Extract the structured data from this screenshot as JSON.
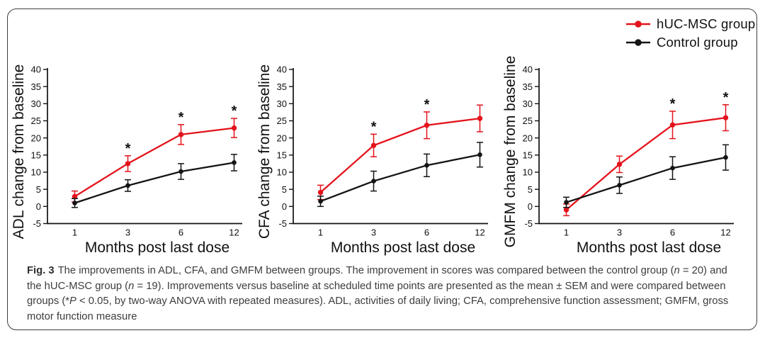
{
  "figure": {
    "caption": {
      "label": "Fig. 3",
      "segments": [
        {
          "text": "The improvements in ADL, CFA, and GMFM between groups. The improvement in scores was compared between the control group ("
        },
        {
          "text": "n",
          "italic": true
        },
        {
          "text": " = 20) and the hUC-MSC group ("
        },
        {
          "text": "n",
          "italic": true
        },
        {
          "text": " = 19). Improvements versus baseline at scheduled time points are presented as the mean ± SEM and were compared between groups (*"
        },
        {
          "text": "P",
          "italic": true
        },
        {
          "text": " < 0.05, by two-way ANOVA with repeated measures). ADL, activities of daily living; CFA, comprehensive function assessment; GMFM, gross motor function measure"
        }
      ]
    }
  },
  "legend": {
    "items": [
      {
        "label": "hUC-MSC group",
        "color": "#e4131c"
      },
      {
        "label": "Control group",
        "color": "#141414"
      }
    ]
  },
  "chart_data": [
    {
      "id": "adl",
      "type": "line",
      "ylabel": "ADL change from baseline",
      "xlabel": "Months post last dose",
      "categories": [
        "1",
        "3",
        "6",
        "12"
      ],
      "ylim": [
        -5,
        40
      ],
      "ytick_step": 5,
      "sig_symbol": "*",
      "series": [
        {
          "name": "hUC-MSC group",
          "color": "#e4131c",
          "values": [
            2.9,
            12.5,
            21.0,
            22.9
          ],
          "sem": [
            1.6,
            2.3,
            2.9,
            2.8
          ],
          "significant": [
            false,
            true,
            true,
            true
          ]
        },
        {
          "name": "Control group",
          "color": "#141414",
          "values": [
            1.0,
            6.1,
            10.2,
            12.8
          ],
          "sem": [
            1.3,
            1.7,
            2.3,
            2.4
          ],
          "significant": [
            false,
            false,
            false,
            false
          ]
        }
      ]
    },
    {
      "id": "cfa",
      "type": "line",
      "ylabel": "CFA change from baseline",
      "xlabel": "Months post last dose",
      "categories": [
        "1",
        "3",
        "6",
        "12"
      ],
      "ylim": [
        -5,
        40
      ],
      "ytick_step": 5,
      "sig_symbol": "*",
      "series": [
        {
          "name": "hUC-MSC group",
          "color": "#e4131c",
          "values": [
            4.1,
            17.8,
            23.7,
            25.7
          ],
          "sem": [
            2.1,
            3.3,
            3.9,
            3.9
          ],
          "significant": [
            false,
            true,
            true,
            false
          ]
        },
        {
          "name": "Control group",
          "color": "#141414",
          "values": [
            1.5,
            7.4,
            12.0,
            15.1
          ],
          "sem": [
            1.5,
            2.9,
            3.3,
            3.6
          ],
          "significant": [
            false,
            false,
            false,
            false
          ]
        }
      ]
    },
    {
      "id": "gmfm",
      "type": "line",
      "ylabel": "GMFM change from baseline",
      "xlabel": "Months post last dose",
      "categories": [
        "1",
        "3",
        "6",
        "12"
      ],
      "ylim": [
        -5,
        40
      ],
      "ytick_step": 5,
      "sig_symbol": "*",
      "series": [
        {
          "name": "hUC-MSC group",
          "color": "#e4131c",
          "values": [
            -1.0,
            12.3,
            23.8,
            25.9
          ],
          "sem": [
            1.7,
            2.4,
            4.0,
            3.8
          ],
          "significant": [
            false,
            false,
            true,
            true
          ]
        },
        {
          "name": "Control group",
          "color": "#141414",
          "values": [
            1.2,
            6.2,
            11.2,
            14.3
          ],
          "sem": [
            1.5,
            2.4,
            3.3,
            3.7
          ],
          "significant": [
            false,
            false,
            false,
            false
          ]
        }
      ]
    }
  ]
}
